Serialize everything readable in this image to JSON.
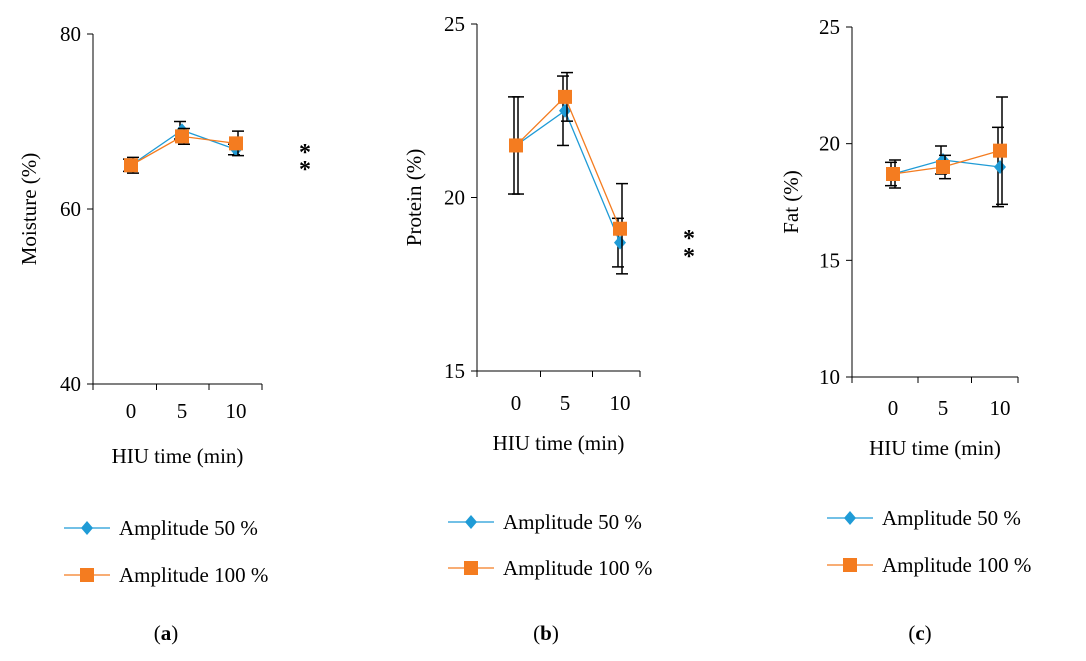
{
  "colors": {
    "series_50": "#1f9bd6",
    "series_100": "#f47c20",
    "axis": "#000000"
  },
  "chart_data": [
    {
      "type": "line",
      "panel": "a",
      "caption": {
        "open": "(",
        "letter": "a",
        "close": ")"
      },
      "x": [
        0,
        5,
        10
      ],
      "xtick_labels": [
        "0",
        "5",
        "10"
      ],
      "xlabel": "HIU time (min)",
      "ylabel": "Moisture (%)",
      "ylim": [
        40,
        80
      ],
      "yticks": [
        40,
        60,
        80
      ],
      "ytick_labels": [
        "40",
        "60",
        "80"
      ],
      "legend_position": "below",
      "series": [
        {
          "name": "Amplitude 50 %",
          "marker": "diamond",
          "values": [
            65.0,
            69.0,
            66.8
          ],
          "errors": [
            0.7,
            1.0,
            0.6
          ]
        },
        {
          "name": "Amplitude 100 %",
          "marker": "square",
          "values": [
            65.0,
            68.3,
            67.5
          ],
          "errors": [
            0.9,
            0.9,
            1.4
          ]
        }
      ],
      "annotations": [
        "*",
        "*"
      ]
    },
    {
      "type": "line",
      "panel": "b",
      "caption": {
        "open": "(",
        "letter": "b",
        "close": ")"
      },
      "x": [
        0,
        5,
        10
      ],
      "xtick_labels": [
        "0",
        "5",
        "10"
      ],
      "xlabel": "HIU time (min)",
      "ylabel": "Protein (%)",
      "ylim": [
        15,
        25
      ],
      "yticks": [
        15,
        20,
        25
      ],
      "ytick_labels": [
        "15",
        "20",
        "25"
      ],
      "legend_position": "below",
      "series": [
        {
          "name": "Amplitude 50 %",
          "marker": "diamond",
          "values": [
            21.5,
            22.5,
            18.7
          ],
          "errors": [
            1.4,
            1.0,
            0.7
          ]
        },
        {
          "name": "Amplitude 100 %",
          "marker": "square",
          "values": [
            21.5,
            22.9,
            19.1
          ],
          "errors": [
            1.4,
            0.7,
            1.3
          ]
        }
      ],
      "annotations": [
        "*",
        "*"
      ]
    },
    {
      "type": "line",
      "panel": "c",
      "caption": {
        "open": "(",
        "letter": "c",
        "close": ")"
      },
      "x": [
        0,
        5,
        10
      ],
      "xtick_labels": [
        "0",
        "5",
        "10"
      ],
      "xlabel": "HIU time (min)",
      "ylabel": "Fat (%)",
      "ylim": [
        10,
        25
      ],
      "yticks": [
        10,
        15,
        20,
        25
      ],
      "ytick_labels": [
        "10",
        "15",
        "20",
        "25"
      ],
      "legend_position": "below",
      "series": [
        {
          "name": "Amplitude 50 %",
          "marker": "diamond",
          "values": [
            18.7,
            19.3,
            19.0
          ],
          "errors": [
            0.5,
            0.6,
            1.7
          ]
        },
        {
          "name": "Amplitude 100 %",
          "marker": "square",
          "values": [
            18.7,
            19.0,
            19.7
          ],
          "errors": [
            0.6,
            0.5,
            2.3
          ]
        }
      ],
      "annotations": []
    }
  ]
}
